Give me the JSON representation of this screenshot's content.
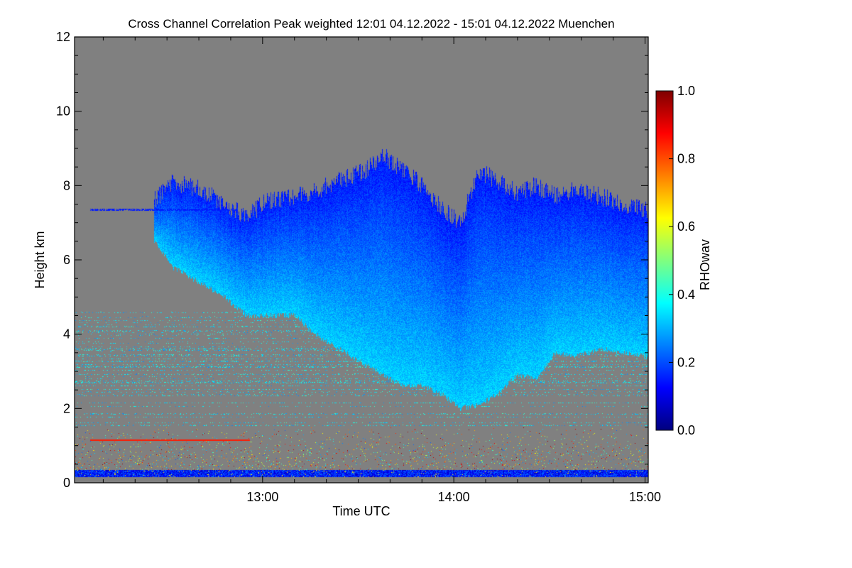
{
  "chart_data": {
    "type": "heatmap",
    "title": "Cross Channel Correlation Peak weighted   12:01 04.12.2022 - 15:01 04.12.2022 Muenchen",
    "xlabel": "Time UTC",
    "ylabel": "Height km",
    "x_range_minutes_utc": [
      721,
      901
    ],
    "x_ticks": [
      {
        "minutes": 780,
        "label": "13:00"
      },
      {
        "minutes": 840,
        "label": "14:00"
      },
      {
        "minutes": 900,
        "label": "15:00"
      }
    ],
    "x_minor_tick_step_minutes": 10,
    "ylim": [
      0,
      12
    ],
    "y_ticks": [
      0,
      2,
      4,
      6,
      8,
      10,
      12
    ],
    "colorbar": {
      "label": "RHOwav",
      "range": [
        0.0,
        1.0
      ],
      "ticks": [
        {
          "value": 0.0,
          "label": "0.0"
        },
        {
          "value": 0.2,
          "label": "0.2"
        },
        {
          "value": 0.4,
          "label": "0.4"
        },
        {
          "value": 0.6,
          "label": "0.6"
        },
        {
          "value": 0.8,
          "label": "0.8"
        },
        {
          "value": 1.0,
          "label": "1.0"
        }
      ],
      "colormap": [
        "#00007f",
        "#0000ff",
        "#00ffff",
        "#ffff00",
        "#ff0000",
        "#7f0000"
      ]
    },
    "no_data_color": "#808080",
    "features": {
      "cloud_layer": {
        "description_values": "RHOwav approx 0.15-0.35",
        "value_range": [
          0.15,
          0.35
        ],
        "time_minutes": [
          746,
          901
        ],
        "top_km": [
          [
            746,
            7.6
          ],
          [
            752,
            8.1
          ],
          [
            760,
            7.9
          ],
          [
            768,
            7.5
          ],
          [
            775,
            7.2
          ],
          [
            782,
            7.6
          ],
          [
            790,
            7.7
          ],
          [
            798,
            7.9
          ],
          [
            806,
            8.2
          ],
          [
            812,
            8.4
          ],
          [
            818,
            8.8
          ],
          [
            824,
            8.4
          ],
          [
            830,
            8.0
          ],
          [
            836,
            7.4
          ],
          [
            842,
            7.0
          ],
          [
            848,
            8.4
          ],
          [
            854,
            8.1
          ],
          [
            860,
            7.8
          ],
          [
            866,
            8.0
          ],
          [
            872,
            7.7
          ],
          [
            878,
            7.9
          ],
          [
            886,
            7.7
          ],
          [
            894,
            7.5
          ],
          [
            901,
            7.3
          ]
        ],
        "base_km": [
          [
            746,
            6.5
          ],
          [
            752,
            5.8
          ],
          [
            760,
            5.4
          ],
          [
            768,
            5.0
          ],
          [
            775,
            4.5
          ],
          [
            782,
            4.5
          ],
          [
            790,
            4.5
          ],
          [
            798,
            3.9
          ],
          [
            806,
            3.5
          ],
          [
            812,
            3.2
          ],
          [
            818,
            2.9
          ],
          [
            824,
            2.6
          ],
          [
            830,
            2.6
          ],
          [
            836,
            2.4
          ],
          [
            842,
            2.0
          ],
          [
            848,
            2.1
          ],
          [
            854,
            2.4
          ],
          [
            860,
            2.9
          ],
          [
            866,
            2.8
          ],
          [
            872,
            3.5
          ],
          [
            878,
            3.4
          ],
          [
            886,
            3.6
          ],
          [
            894,
            3.5
          ],
          [
            901,
            3.4
          ]
        ]
      },
      "near_surface_layer": {
        "km": [
          0.15,
          0.35
        ],
        "value_range": [
          0.05,
          0.25
        ]
      },
      "noise_band": {
        "km": [
          0.35,
          1.5
        ],
        "value_range": [
          0.2,
          1.0
        ]
      },
      "aerosol_streaks": {
        "km": [
          1.5,
          4.6
        ],
        "value_range": [
          0.25,
          0.45
        ]
      },
      "red_streak": {
        "km": 1.15,
        "time_minutes": [
          726,
          776
        ],
        "value": 0.85
      },
      "upper_streak": {
        "km": 7.35,
        "time_minutes": [
          726,
          772
        ],
        "value": 0.15
      }
    }
  }
}
